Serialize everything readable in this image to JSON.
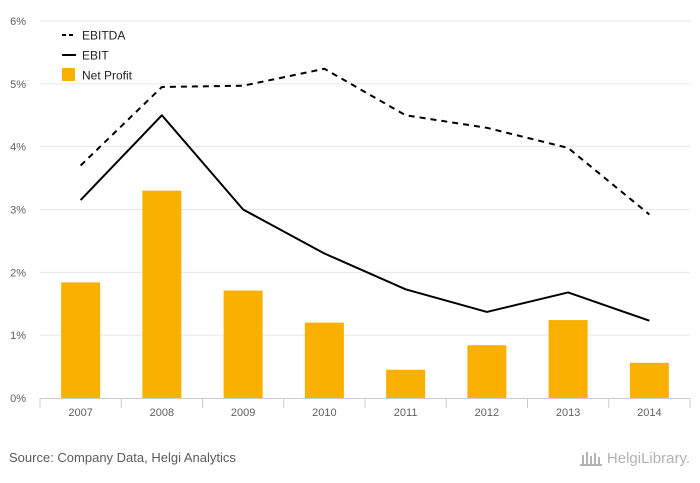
{
  "chart_data": {
    "type": "bar+line",
    "categories": [
      "2007",
      "2008",
      "2009",
      "2010",
      "2011",
      "2012",
      "2013",
      "2014"
    ],
    "series": [
      {
        "name": "EBITDA",
        "kind": "line",
        "style": "dashed",
        "color": "#000000",
        "values": [
          3.7,
          4.95,
          4.97,
          5.24,
          4.5,
          4.3,
          3.98,
          2.92
        ]
      },
      {
        "name": "EBIT",
        "kind": "line",
        "style": "solid",
        "color": "#000000",
        "values": [
          3.15,
          4.5,
          3.0,
          2.3,
          1.73,
          1.37,
          1.68,
          1.23
        ]
      },
      {
        "name": "Net Profit",
        "kind": "bar",
        "color": "#F9B000",
        "values": [
          1.84,
          3.3,
          1.71,
          1.2,
          0.45,
          0.84,
          1.24,
          0.56
        ]
      }
    ],
    "yticks": [
      "0%",
      "1%",
      "2%",
      "3%",
      "4%",
      "5%",
      "6%"
    ],
    "ylim": [
      0,
      6
    ],
    "grid": true,
    "legend_position": "top-left"
  },
  "footer": {
    "source": "Source: Company Data, Helgi Analytics",
    "logo_text": "HelgiLibrary."
  }
}
